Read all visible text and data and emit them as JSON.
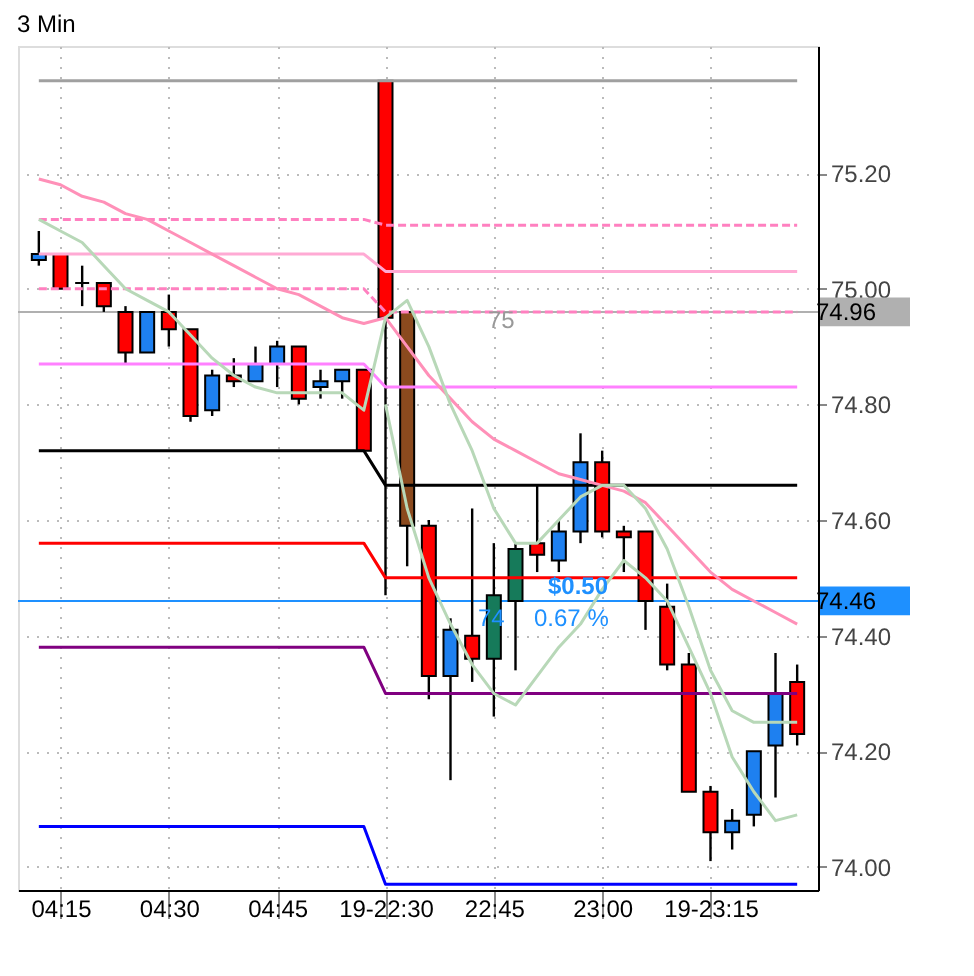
{
  "chart_data": {
    "type": "candlestick",
    "title": "3 Min",
    "categories": [
      null,
      "04:15",
      null,
      null,
      null,
      null,
      "04:30",
      null,
      null,
      null,
      null,
      "04:45",
      null,
      null,
      null,
      null,
      "19-22:30",
      null,
      null,
      null,
      null,
      "22:45",
      null,
      null,
      null,
      null,
      "23:00",
      null,
      null,
      null,
      null,
      "19-23:15",
      null,
      null,
      null,
      null
    ],
    "ohlc": [
      [
        75.05,
        75.1,
        75.04,
        75.06
      ],
      [
        75.06,
        75.06,
        75.0,
        75.0
      ],
      [
        75.01,
        75.04,
        74.97,
        75.01
      ],
      [
        75.01,
        75.01,
        74.96,
        74.97
      ],
      [
        74.96,
        74.97,
        74.87,
        74.89
      ],
      [
        74.89,
        74.96,
        74.89,
        74.96
      ],
      [
        74.96,
        74.99,
        74.9,
        74.93
      ],
      [
        74.93,
        74.93,
        74.77,
        74.78
      ],
      [
        74.79,
        74.86,
        74.78,
        74.85
      ],
      [
        74.85,
        74.88,
        74.83,
        74.84
      ],
      [
        74.84,
        74.9,
        74.84,
        74.87
      ],
      [
        74.87,
        74.91,
        74.83,
        74.9
      ],
      [
        74.9,
        74.9,
        74.8,
        74.81
      ],
      [
        74.83,
        74.86,
        74.81,
        74.84
      ],
      [
        74.84,
        74.86,
        74.81,
        74.86
      ],
      [
        74.86,
        74.86,
        74.72,
        74.72
      ],
      [
        75.36,
        75.36,
        74.47,
        74.95
      ],
      [
        74.96,
        74.96,
        74.52,
        74.59
      ],
      [
        74.59,
        74.6,
        74.29,
        74.33
      ],
      [
        74.33,
        74.43,
        74.15,
        74.41
      ],
      [
        74.4,
        74.62,
        74.32,
        74.36
      ],
      [
        74.36,
        74.56,
        74.26,
        74.47
      ],
      [
        74.46,
        74.56,
        74.34,
        74.55
      ],
      [
        74.56,
        74.66,
        74.51,
        74.54
      ],
      [
        74.53,
        74.6,
        74.51,
        74.58
      ],
      [
        74.58,
        74.75,
        74.56,
        74.7
      ],
      [
        74.7,
        74.72,
        74.57,
        74.58
      ],
      [
        74.58,
        74.59,
        74.51,
        74.57
      ],
      [
        74.58,
        74.58,
        74.41,
        74.46
      ],
      [
        74.45,
        74.49,
        74.34,
        74.35
      ],
      [
        74.35,
        74.37,
        74.13,
        74.13
      ],
      [
        74.13,
        74.14,
        74.01,
        74.06
      ],
      [
        74.06,
        74.1,
        74.03,
        74.08
      ],
      [
        74.09,
        74.2,
        74.07,
        74.2
      ],
      [
        74.21,
        74.37,
        74.12,
        74.3
      ],
      [
        74.32,
        74.35,
        74.21,
        74.23
      ]
    ],
    "colors": [
      "#1e80f0",
      "#ff0000",
      "#000000",
      "#ff0000",
      "#ff0000",
      "#1e80f0",
      "#ff0000",
      "#ff0000",
      "#1e80f0",
      "#ff0000",
      "#1e80f0",
      "#1e80f0",
      "#ff0000",
      "#1e80f0",
      "#1e80f0",
      "#ff0000",
      "#ff0000",
      "#8b4a1e",
      "#ff0000",
      "#1e80f0",
      "#ff0000",
      "#167a5a",
      "#167a5a",
      "#ff0000",
      "#1e80f0",
      "#1e80f0",
      "#ff0000",
      "#ff0000",
      "#ff0000",
      "#ff0000",
      "#ff0000",
      "#ff0000",
      "#1e80f0",
      "#1e80f0",
      "#1e80f0",
      "#ff0000"
    ],
    "series": [
      {
        "type": "line",
        "color": "#a0a0a0",
        "values": [
          75.36,
          75.36,
          75.36,
          75.36,
          75.36,
          75.36,
          75.36,
          75.36,
          75.36,
          75.36,
          75.36,
          75.36,
          75.36,
          75.36,
          75.36,
          75.36,
          75.36,
          75.36,
          75.36,
          75.36,
          75.36,
          75.36,
          75.36,
          75.36,
          75.36,
          75.36,
          75.36,
          75.36,
          75.36,
          75.36,
          75.36,
          75.36,
          75.36,
          75.36,
          75.36,
          75.36
        ]
      },
      {
        "type": "line",
        "color": "#ff80c0",
        "line_style": "dashed",
        "values": [
          75.12,
          75.12,
          75.12,
          75.12,
          75.12,
          75.12,
          75.12,
          75.12,
          75.12,
          75.12,
          75.12,
          75.12,
          75.12,
          75.12,
          75.12,
          75.12,
          75.11,
          75.11,
          75.11,
          75.11,
          75.11,
          75.11,
          75.11,
          75.11,
          75.11,
          75.11,
          75.11,
          75.11,
          75.11,
          75.11,
          75.11,
          75.11,
          75.11,
          75.11,
          75.11,
          75.11
        ]
      },
      {
        "type": "line",
        "color": "#ffaad4",
        "values": [
          75.06,
          75.06,
          75.06,
          75.06,
          75.06,
          75.06,
          75.06,
          75.06,
          75.06,
          75.06,
          75.06,
          75.06,
          75.06,
          75.06,
          75.06,
          75.06,
          75.03,
          75.03,
          75.03,
          75.03,
          75.03,
          75.03,
          75.03,
          75.03,
          75.03,
          75.03,
          75.03,
          75.03,
          75.03,
          75.03,
          75.03,
          75.03,
          75.03,
          75.03,
          75.03,
          75.03
        ]
      },
      {
        "type": "line",
        "color": "#ff80c0",
        "line_style": "dashed",
        "values": [
          75.0,
          75.0,
          75.0,
          75.0,
          75.0,
          75.0,
          75.0,
          75.0,
          75.0,
          75.0,
          75.0,
          75.0,
          75.0,
          75.0,
          75.0,
          75.0,
          74.96,
          74.96,
          74.96,
          74.96,
          74.96,
          74.96,
          74.96,
          74.96,
          74.96,
          74.96,
          74.96,
          74.96,
          74.96,
          74.96,
          74.96,
          74.96,
          74.96,
          74.96,
          74.96,
          74.96
        ]
      },
      {
        "type": "line",
        "color": "#ff80ff",
        "values": [
          74.87,
          74.87,
          74.87,
          74.87,
          74.87,
          74.87,
          74.87,
          74.87,
          74.87,
          74.87,
          74.87,
          74.87,
          74.87,
          74.87,
          74.87,
          74.87,
          74.83,
          74.83,
          74.83,
          74.83,
          74.83,
          74.83,
          74.83,
          74.83,
          74.83,
          74.83,
          74.83,
          74.83,
          74.83,
          74.83,
          74.83,
          74.83,
          74.83,
          74.83,
          74.83,
          74.83
        ]
      },
      {
        "type": "line",
        "color": "#000000",
        "values": [
          74.72,
          74.72,
          74.72,
          74.72,
          74.72,
          74.72,
          74.72,
          74.72,
          74.72,
          74.72,
          74.72,
          74.72,
          74.72,
          74.72,
          74.72,
          74.72,
          74.66,
          74.66,
          74.66,
          74.66,
          74.66,
          74.66,
          74.66,
          74.66,
          74.66,
          74.66,
          74.66,
          74.66,
          74.66,
          74.66,
          74.66,
          74.66,
          74.66,
          74.66,
          74.66,
          74.66
        ]
      },
      {
        "type": "line",
        "color": "#ff0000",
        "values": [
          74.56,
          74.56,
          74.56,
          74.56,
          74.56,
          74.56,
          74.56,
          74.56,
          74.56,
          74.56,
          74.56,
          74.56,
          74.56,
          74.56,
          74.56,
          74.56,
          74.5,
          74.5,
          74.5,
          74.5,
          74.5,
          74.5,
          74.5,
          74.5,
          74.5,
          74.5,
          74.5,
          74.5,
          74.5,
          74.5,
          74.5,
          74.5,
          74.5,
          74.5,
          74.5,
          74.5
        ]
      },
      {
        "type": "line",
        "color": "#800080",
        "values": [
          74.38,
          74.38,
          74.38,
          74.38,
          74.38,
          74.38,
          74.38,
          74.38,
          74.38,
          74.38,
          74.38,
          74.38,
          74.38,
          74.38,
          74.38,
          74.38,
          74.3,
          74.3,
          74.3,
          74.3,
          74.3,
          74.3,
          74.3,
          74.3,
          74.3,
          74.3,
          74.3,
          74.3,
          74.3,
          74.3,
          74.3,
          74.3,
          74.3,
          74.3,
          74.3,
          74.3
        ]
      },
      {
        "type": "line",
        "color": "#0000ff",
        "values": [
          74.07,
          74.07,
          74.07,
          74.07,
          74.07,
          74.07,
          74.07,
          74.07,
          74.07,
          74.07,
          74.07,
          74.07,
          74.07,
          74.07,
          74.07,
          74.07,
          73.97,
          73.97,
          73.97,
          73.97,
          73.97,
          73.97,
          73.97,
          73.97,
          73.97,
          73.97,
          73.97,
          73.97,
          73.97,
          73.97,
          73.97,
          73.97,
          73.97,
          73.97,
          73.97,
          73.97
        ]
      },
      {
        "type": "line",
        "color": "#ff90b8",
        "values": [
          75.19,
          75.18,
          75.16,
          75.15,
          75.13,
          75.12,
          75.1,
          75.08,
          75.06,
          75.04,
          75.02,
          75.0,
          74.99,
          74.97,
          74.95,
          74.94,
          74.95,
          74.9,
          74.85,
          74.81,
          74.77,
          74.74,
          74.72,
          74.7,
          74.68,
          74.67,
          74.66,
          74.65,
          74.63,
          74.59,
          74.55,
          74.51,
          74.48,
          74.46,
          74.44,
          74.42
        ]
      },
      {
        "type": "line",
        "color": "#b8d8b8",
        "values": [
          75.12,
          75.1,
          75.08,
          75.04,
          75.0,
          74.98,
          74.96,
          74.92,
          74.88,
          74.85,
          74.83,
          74.82,
          74.82,
          74.82,
          74.82,
          74.79,
          74.95,
          74.98,
          74.9,
          74.8,
          74.72,
          74.62,
          74.56,
          74.56,
          74.6,
          74.64,
          74.66,
          74.66,
          74.62,
          74.55,
          74.45,
          74.34,
          74.27,
          74.25,
          74.25,
          74.25
        ]
      },
      {
        "type": "line",
        "color": "#b8d8b8",
        "values": [
          null,
          null,
          null,
          null,
          null,
          null,
          null,
          null,
          null,
          null,
          null,
          null,
          null,
          null,
          null,
          null,
          74.8,
          74.62,
          74.5,
          74.42,
          74.35,
          74.3,
          74.28,
          74.33,
          74.38,
          74.42,
          74.48,
          74.53,
          74.5,
          74.46,
          74.38,
          74.3,
          74.19,
          74.13,
          74.08,
          74.09
        ]
      }
    ],
    "ylim": [
      73.96,
      75.42
    ],
    "yticks": [
      {
        "value": 74.0,
        "label": "74.00"
      },
      {
        "value": 74.2,
        "label": "74.20"
      },
      {
        "value": 74.4,
        "label": "74.40"
      },
      {
        "value": 74.6,
        "label": "74.60"
      },
      {
        "value": 74.8,
        "label": "74.80"
      },
      {
        "value": 75.0,
        "label": "75.00"
      },
      {
        "value": 75.2,
        "label": "75.20"
      }
    ],
    "ref_lines": [
      {
        "axis": "y",
        "value": 74.96,
        "label": "74.96",
        "color": "#b0b0b0"
      },
      {
        "axis": "y",
        "value": 74.46,
        "label": "74.46",
        "color": "#1e90ff"
      }
    ],
    "annotations": [
      "75",
      "$0.50",
      "0.67 %",
      "74"
    ],
    "grid": true
  }
}
